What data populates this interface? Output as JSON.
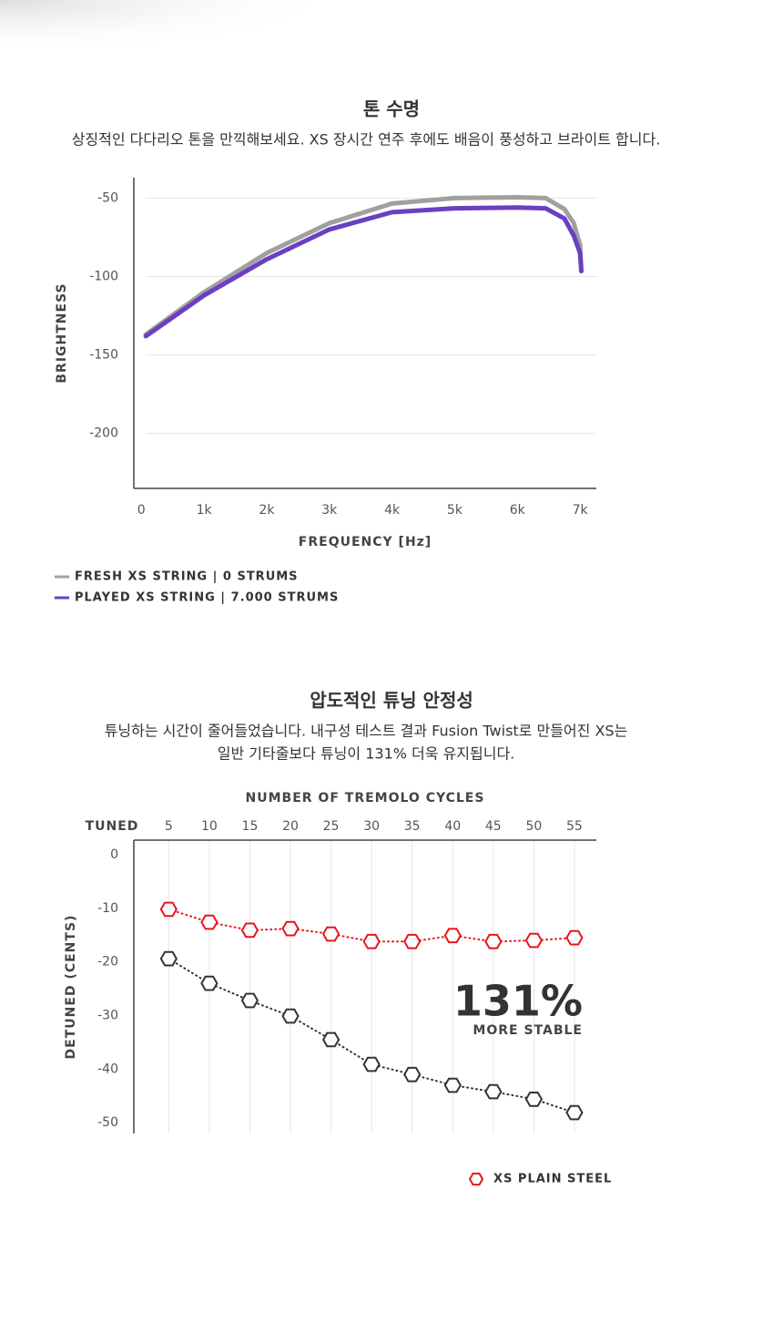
{
  "chart_data": [
    {
      "type": "line",
      "title": "톤 수명",
      "subtitle": [
        "상징적인 다다리오 톤을 만끽해보세요. XS 장시간 연주 후에도 배음이 풍성하고 브라이트 합니다."
      ],
      "x_label": "FREQUENCY [Hz]",
      "y_label": "BRIGHTNESS",
      "x": [
        70,
        1000,
        2000,
        3000,
        4000,
        5000,
        6000,
        6450,
        6750,
        6900,
        7000,
        7020
      ],
      "series": [
        {
          "name": "FRESH XS STRING | 0 STRUMS",
          "color": "#a0a0a0",
          "values": [
            -137,
            -110,
            -85,
            -66,
            -53.5,
            -50,
            -49.5,
            -50,
            -57,
            -66,
            -80,
            -96.5
          ]
        },
        {
          "name": "PLAYED XS STRING | 7.000 STRUMS",
          "color": "#6a3fc1",
          "values": [
            -138,
            -112,
            -89,
            -70,
            -59,
            -56.5,
            -56,
            -56.5,
            -63,
            -74,
            -85,
            -96.5
          ]
        }
      ],
      "xlim": [
        -120,
        7260
      ],
      "xticks": [
        0,
        {
          "value": 1000,
          "label": "1k"
        },
        {
          "value": 2000,
          "label": "2k"
        },
        {
          "value": 3000,
          "label": "3k"
        },
        {
          "value": 4000,
          "label": "4k"
        },
        {
          "value": 5000,
          "label": "5k"
        },
        {
          "value": 6000,
          "label": "6k"
        },
        {
          "value": 7000,
          "label": "7k"
        }
      ],
      "ylim": [
        -235,
        -37
      ],
      "yticks": [
        -50,
        -100,
        -150,
        -200
      ],
      "grid": "horizontal",
      "legend": "bottom-left"
    },
    {
      "type": "line",
      "title": "압도적인 튜닝 안정성",
      "subtitle": [
        "튜닝하는 시간이 줄어들었습니다. 내구성 테스트 결과 Fusion Twist로 만들어진 XS는",
        "일반 기타줄보다 튜닝이 131% 더욱 유지됩니다."
      ],
      "x_label": "NUMBER OF TREMOLO CYCLES",
      "y_label": "DETUNED (CENTS)",
      "corner_label": "TUNED",
      "annotation": "131%",
      "annotation_sub": "MORE STABLE",
      "x": [
        5,
        10,
        15,
        20,
        25,
        30,
        35,
        40,
        45,
        50,
        55
      ],
      "series": [
        {
          "name": "XS PLAIN STEEL",
          "color": "#e8141c",
          "values": [
            -10.2,
            -12.6,
            -14.1,
            -13.8,
            -14.8,
            -16.2,
            -16.2,
            -15.1,
            -16.2,
            -16.0,
            -15.5
          ]
        },
        {
          "color": "#333333",
          "values": [
            -19.4,
            -24.0,
            -27.2,
            -30.1,
            -34.5,
            -39.1,
            -41.0,
            -43.0,
            -44.2,
            -45.6,
            -48.1
          ]
        }
      ],
      "xlim": [
        0.7,
        57.7
      ],
      "xticks": [
        5,
        10,
        15,
        20,
        25,
        30,
        35,
        40,
        45,
        50,
        55
      ],
      "x_axis": "top",
      "ylim": [
        -52,
        2.7
      ],
      "yticks": [
        0,
        -10,
        -20,
        -30,
        -40,
        -50
      ],
      "grid": "vertical",
      "markers": "hexagon",
      "line_style": "dotted",
      "legend": "bottom-right"
    }
  ]
}
